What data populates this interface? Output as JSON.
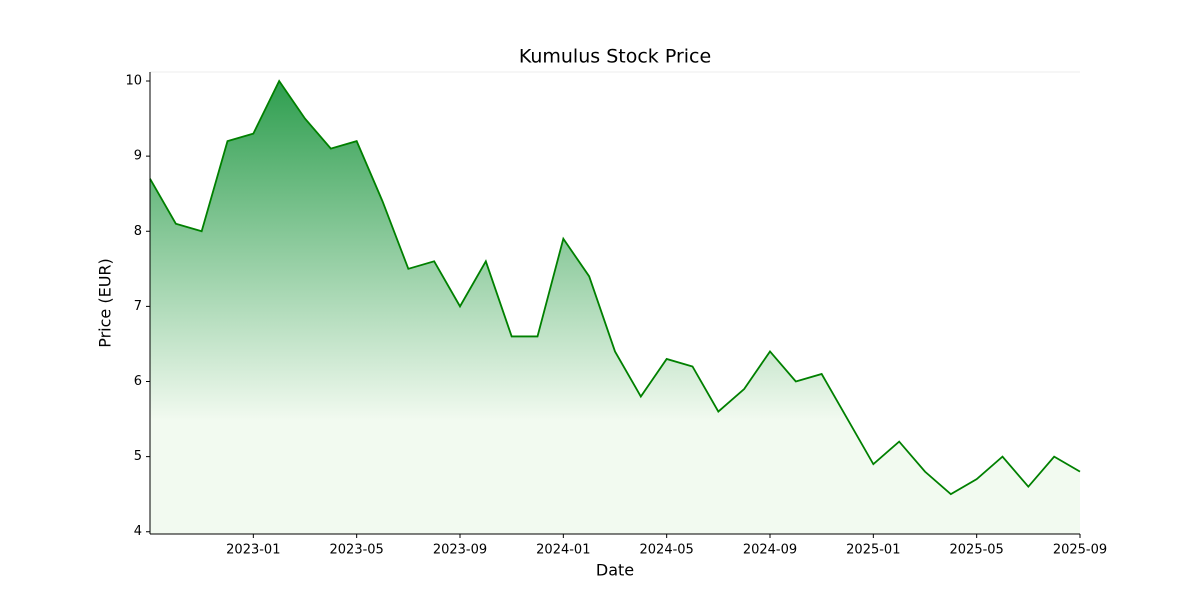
{
  "chart_data": {
    "type": "area-line",
    "title": "Kumulus Stock Price",
    "xlabel": "Date",
    "ylabel": "Price (EUR)",
    "x": [
      "2022-09",
      "2022-10",
      "2022-11",
      "2022-12",
      "2023-01",
      "2023-02",
      "2023-03",
      "2023-04",
      "2023-05",
      "2023-06",
      "2023-07",
      "2023-08",
      "2023-09",
      "2023-10",
      "2023-11",
      "2023-12",
      "2024-01",
      "2024-02",
      "2024-03",
      "2024-04",
      "2024-05",
      "2024-06",
      "2024-07",
      "2024-08",
      "2024-09",
      "2024-10",
      "2024-11",
      "2024-12",
      "2025-01",
      "2025-02",
      "2025-03",
      "2025-04",
      "2025-05",
      "2025-06",
      "2025-07",
      "2025-08",
      "2025-09"
    ],
    "values": [
      8.7,
      8.1,
      8.0,
      9.2,
      9.3,
      10.0,
      9.5,
      9.1,
      9.2,
      8.4,
      7.5,
      7.6,
      7.0,
      7.6,
      6.6,
      6.6,
      7.9,
      7.4,
      6.4,
      5.8,
      6.3,
      6.2,
      5.6,
      5.9,
      6.4,
      6.0,
      6.1,
      5.5,
      4.9,
      5.2,
      4.8,
      4.5,
      4.7,
      5.0,
      4.6,
      5.0,
      4.8
    ],
    "color": "#008000",
    "fill_gradient": [
      "#2e9e4f",
      "#f2faf0"
    ],
    "xlim": [
      "2022-09",
      "2025-09"
    ],
    "xticks": [
      "2023-01",
      "2023-05",
      "2023-09",
      "2024-01",
      "2024-05",
      "2024-09",
      "2025-01",
      "2025-05",
      "2025-09"
    ],
    "ylim": [
      3.97,
      10.12
    ],
    "yticks": [
      4,
      5,
      6,
      7,
      8,
      9,
      10
    ],
    "grid": false
  }
}
